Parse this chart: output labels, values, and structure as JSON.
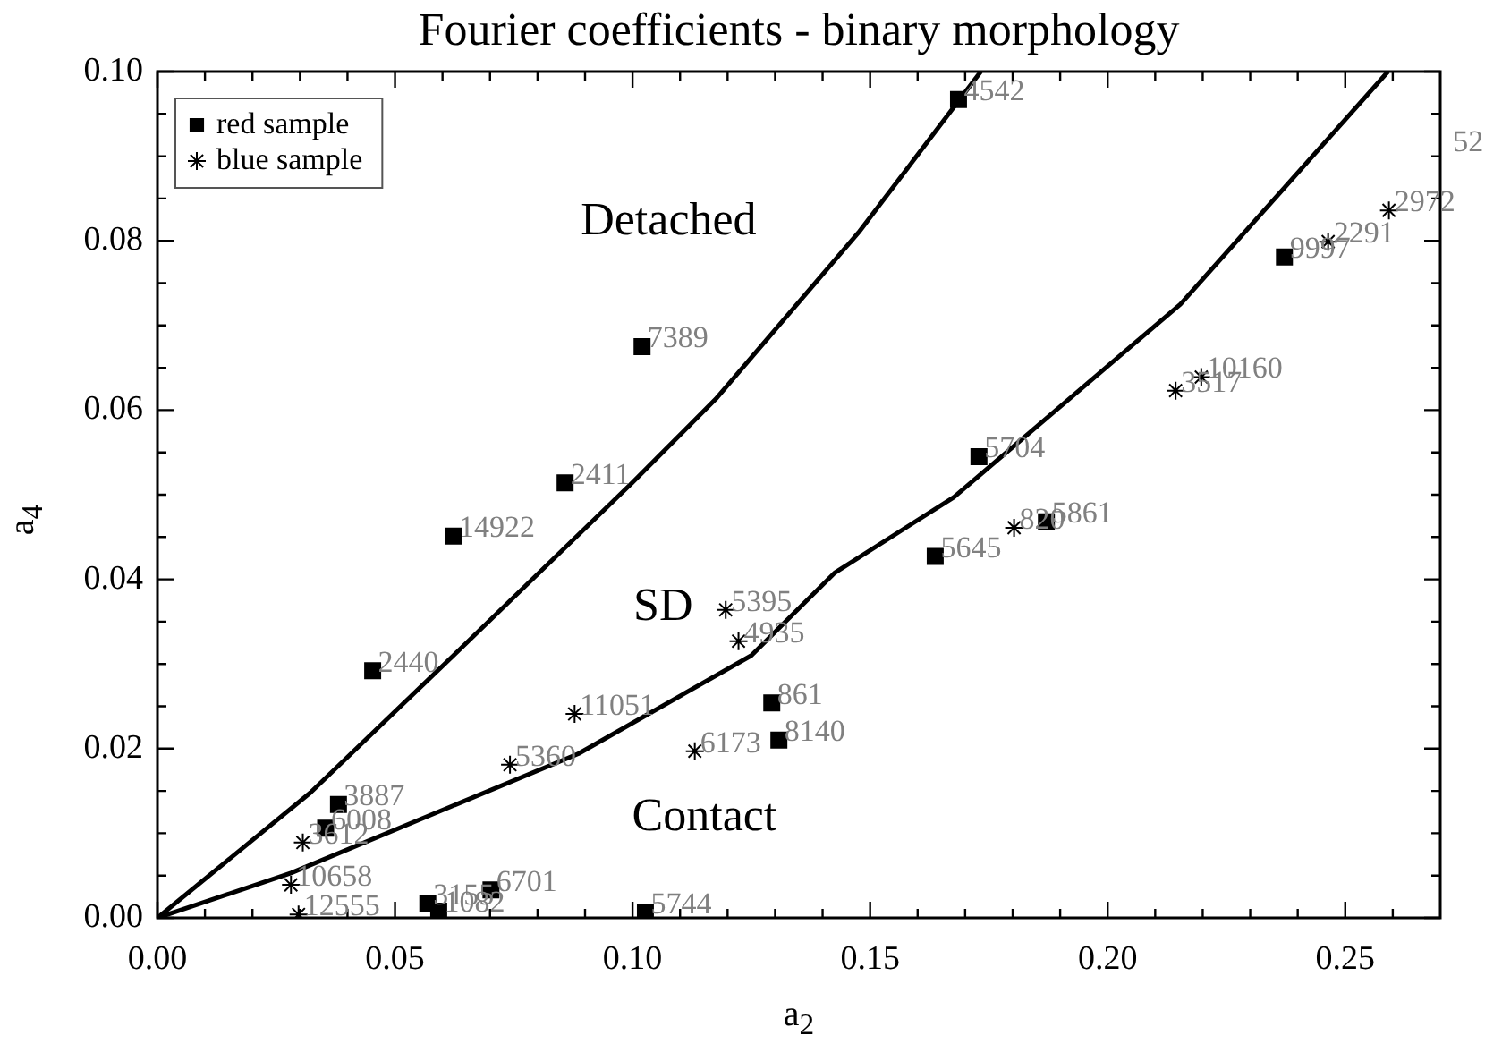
{
  "chart_data": {
    "type": "scatter",
    "title": "Fourier coefficients - binary morphology",
    "xlabel": "a$_{2}$",
    "ylabel": "a$_{4}$",
    "xlim": [
      0,
      0.27
    ],
    "ylim": [
      0,
      0.1
    ],
    "xticks": [
      {
        "value": 0,
        "label": "0.00"
      },
      {
        "value": 0.01,
        "label": null
      },
      {
        "value": 0.02,
        "label": null
      },
      {
        "value": 0.03,
        "label": null
      },
      {
        "value": 0.04,
        "label": null
      },
      {
        "value": 0.05,
        "label": "0.05"
      },
      {
        "value": 0.06,
        "label": null
      },
      {
        "value": 0.07,
        "label": null
      },
      {
        "value": 0.08,
        "label": null
      },
      {
        "value": 0.09,
        "label": null
      },
      {
        "value": 0.1,
        "label": "0.10"
      },
      {
        "value": 0.11,
        "label": null
      },
      {
        "value": 0.12,
        "label": null
      },
      {
        "value": 0.13,
        "label": null
      },
      {
        "value": 0.14,
        "label": null
      },
      {
        "value": 0.15,
        "label": "0.15"
      },
      {
        "value": 0.16,
        "label": null
      },
      {
        "value": 0.17,
        "label": null
      },
      {
        "value": 0.18,
        "label": null
      },
      {
        "value": 0.19,
        "label": null
      },
      {
        "value": 0.2,
        "label": "0.20"
      },
      {
        "value": 0.21,
        "label": null
      },
      {
        "value": 0.22,
        "label": null
      },
      {
        "value": 0.23,
        "label": null
      },
      {
        "value": 0.24,
        "label": null
      },
      {
        "value": 0.25,
        "label": "0.25"
      },
      {
        "value": 0.26,
        "label": null
      }
    ],
    "yticks": [
      {
        "value": 0,
        "label": "0.00"
      },
      {
        "value": 0.005,
        "label": null
      },
      {
        "value": 0.01,
        "label": null
      },
      {
        "value": 0.015,
        "label": null
      },
      {
        "value": 0.02,
        "label": "0.02"
      },
      {
        "value": 0.025,
        "label": null
      },
      {
        "value": 0.03,
        "label": null
      },
      {
        "value": 0.035,
        "label": null
      },
      {
        "value": 0.04,
        "label": "0.04"
      },
      {
        "value": 0.045,
        "label": null
      },
      {
        "value": 0.05,
        "label": null
      },
      {
        "value": 0.055,
        "label": null
      },
      {
        "value": 0.06,
        "label": "0.06"
      },
      {
        "value": 0.065,
        "label": null
      },
      {
        "value": 0.07,
        "label": null
      },
      {
        "value": 0.075,
        "label": null
      },
      {
        "value": 0.08,
        "label": "0.08"
      },
      {
        "value": 0.085,
        "label": null
      },
      {
        "value": 0.09,
        "label": null
      },
      {
        "value": 0.095,
        "label": null
      },
      {
        "value": 0.1,
        "label": "0.10"
      }
    ],
    "legend": "top left",
    "series": [
      {
        "name": "red sample",
        "marker": "square",
        "color": "#000000",
        "x": [
          0.1686,
          0.102,
          0.0858,
          0.0623,
          0.0453,
          0.0381,
          0.0354,
          0.0569,
          0.0592,
          0.0702,
          0.1027,
          0.1293,
          0.1308,
          0.1637,
          0.1871,
          0.1729,
          0.2372
        ],
        "values": [
          0.0967,
          0.0675,
          0.0514,
          0.0451,
          0.0292,
          0.0134,
          0.0106,
          0.0017,
          0.0008,
          0.0033,
          0.0006,
          0.0254,
          0.021,
          0.0427,
          0.0468,
          0.0545,
          0.0781
        ]
      },
      {
        "name": "blue sample",
        "marker": "cross",
        "color": "#000000",
        "x": [
          0.2592,
          0.2464,
          0.2197,
          0.2143,
          0.1803,
          0.1196,
          0.1223,
          0.1131,
          0.0878,
          0.0742,
          0.0306,
          0.0281,
          0.0297
        ],
        "values": [
          0.0836,
          0.0799,
          0.0639,
          0.0623,
          0.0461,
          0.0364,
          0.0327,
          0.0197,
          0.0241,
          0.0181,
          0.0089,
          0.0039,
          0.0004
        ]
      },
      {
        "type": "line",
        "color": "#000000",
        "x": [
          0,
          0.0322,
          0.0623,
          0.0999,
          0.1175,
          0.1476,
          0.1733
        ],
        "values": [
          0,
          0.0148,
          0.031,
          0.0514,
          0.0613,
          0.081,
          0.1
        ]
      },
      {
        "type": "line",
        "color": "#000000",
        "x": [
          0,
          0.0281,
          0.0886,
          0.125,
          0.1426,
          0.1676,
          0.2153,
          0.259
        ],
        "values": [
          0,
          0.0053,
          0.0194,
          0.031,
          0.0408,
          0.0497,
          0.0725,
          0.1
        ]
      }
    ],
    "annotations": [
      "Detached",
      "SD",
      "Contact",
      "52",
      {
        "text": "4542",
        "x": 0.1686,
        "y": 0.0967
      },
      {
        "text": "7389",
        "x": 0.102,
        "y": 0.0675
      },
      {
        "text": "2411",
        "x": 0.0858,
        "y": 0.0514
      },
      {
        "text": "14922",
        "x": 0.0623,
        "y": 0.0451
      },
      {
        "text": "2440",
        "x": 0.0453,
        "y": 0.0292
      },
      {
        "text": "3887",
        "x": 0.0381,
        "y": 0.0134
      },
      {
        "text": "6008",
        "x": 0.0354,
        "y": 0.0106
      },
      {
        "text": "3155",
        "x": 0.0569,
        "y": 0.0017
      },
      {
        "text": "1082",
        "x": 0.0592,
        "y": 0.0008
      },
      {
        "text": "6701",
        "x": 0.0702,
        "y": 0.0033
      },
      {
        "text": "5744",
        "x": 0.1027,
        "y": 0.0006
      },
      {
        "text": "861",
        "x": 0.1293,
        "y": 0.0254
      },
      {
        "text": "8140",
        "x": 0.1308,
        "y": 0.021
      },
      {
        "text": "5645",
        "x": 0.1637,
        "y": 0.0427
      },
      {
        "text": "5861",
        "x": 0.1871,
        "y": 0.0468
      },
      {
        "text": "5704",
        "x": 0.1729,
        "y": 0.0545
      },
      {
        "text": "9997",
        "x": 0.2372,
        "y": 0.0781
      },
      {
        "text": "2972",
        "x": 0.2592,
        "y": 0.0836
      },
      {
        "text": "2291",
        "x": 0.2464,
        "y": 0.0799
      },
      {
        "text": "10160",
        "x": 0.2197,
        "y": 0.0639
      },
      {
        "text": "3517",
        "x": 0.2143,
        "y": 0.0623
      },
      {
        "text": "820",
        "x": 0.1803,
        "y": 0.0461
      },
      {
        "text": "5395",
        "x": 0.1196,
        "y": 0.0364
      },
      {
        "text": "4935",
        "x": 0.1223,
        "y": 0.0327
      },
      {
        "text": "6173",
        "x": 0.1131,
        "y": 0.0197
      },
      {
        "text": "11051",
        "x": 0.0878,
        "y": 0.0241
      },
      {
        "text": "5360",
        "x": 0.0742,
        "y": 0.0181
      },
      {
        "text": "3612",
        "x": 0.0306,
        "y": 0.0089
      },
      {
        "text": "10658",
        "x": 0.0281,
        "y": 0.0039
      },
      {
        "text": "12555",
        "x": 0.0297,
        "y": 0.0004
      }
    ]
  }
}
